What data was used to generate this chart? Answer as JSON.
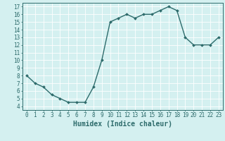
{
  "x": [
    0,
    1,
    2,
    3,
    4,
    5,
    6,
    7,
    8,
    9,
    10,
    11,
    12,
    13,
    14,
    15,
    16,
    17,
    18,
    19,
    20,
    21,
    22,
    23
  ],
  "y": [
    8.0,
    7.0,
    6.5,
    5.5,
    5.0,
    4.5,
    4.5,
    4.5,
    6.5,
    10.0,
    15.0,
    15.5,
    16.0,
    15.5,
    16.0,
    16.0,
    16.5,
    17.0,
    16.5,
    13.0,
    12.0,
    12.0,
    12.0,
    13.0
  ],
  "line_color": "#2d6b6b",
  "marker": "D",
  "marker_size": 2.0,
  "xlabel": "Humidex (Indice chaleur)",
  "xlim": [
    -0.5,
    23.5
  ],
  "ylim": [
    3.5,
    17.5
  ],
  "yticks": [
    4,
    5,
    6,
    7,
    8,
    9,
    10,
    11,
    12,
    13,
    14,
    15,
    16,
    17
  ],
  "xticks": [
    0,
    1,
    2,
    3,
    4,
    5,
    6,
    7,
    8,
    9,
    10,
    11,
    12,
    13,
    14,
    15,
    16,
    17,
    18,
    19,
    20,
    21,
    22,
    23
  ],
  "bg_color": "#d4f0f0",
  "grid_color": "#ffffff",
  "tick_color": "#2d6b6b",
  "label_color": "#2d6b6b",
  "axis_color": "#2d6b6b",
  "xlabel_fontsize": 7,
  "tick_fontsize": 5.5,
  "linewidth": 1.0
}
